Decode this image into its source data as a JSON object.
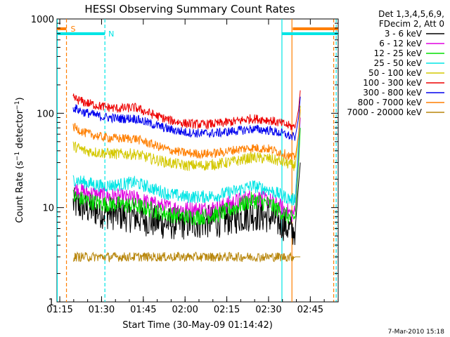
{
  "chart_data": {
    "type": "line",
    "title": "HESSI Observing Summary Count Rates",
    "xlabel": "Start Time (30-May-09 01:14:42)",
    "ylabel": "Count Rate (s⁻¹ detector⁻¹)",
    "ylabel_main": "Count Rate (s",
    "ylabel_sup1": "−1",
    "ylabel_mid": " detector",
    "ylabel_sup2": "−1",
    "ylabel_end": ")",
    "yscale": "log",
    "ylim": [
      1,
      1000
    ],
    "xlim": [
      1.233,
      2.917
    ],
    "x_unit": "hours",
    "x_ticks": [
      {
        "value": 1.25,
        "label": "01:15"
      },
      {
        "value": 1.5,
        "label": "01:30"
      },
      {
        "value": 1.75,
        "label": "01:45"
      },
      {
        "value": 2.0,
        "label": "02:00"
      },
      {
        "value": 2.25,
        "label": "02:15"
      },
      {
        "value": 2.5,
        "label": "02:30"
      },
      {
        "value": 2.75,
        "label": "02:45"
      }
    ],
    "y_ticks": [
      {
        "value": 1,
        "label": "1"
      },
      {
        "value": 10,
        "label": "10"
      },
      {
        "value": 100,
        "label": "100"
      },
      {
        "value": 1000,
        "label": "1000"
      }
    ],
    "legend_header": [
      "Det 1,3,4,5,6,9,",
      "FDecim 2, Att 0"
    ],
    "legend_position": "right",
    "footer": "7-Mar-2010 15:18",
    "markers": {
      "saa": {
        "label": "S",
        "color": "#ff7f00",
        "lines": [
          1.29,
          2.64,
          2.89
        ]
      },
      "night": {
        "label": "N",
        "color": "#00e5e5",
        "lines": [
          1.235,
          1.52,
          2.58,
          2.905
        ]
      }
    },
    "series": [
      {
        "name": "3 - 6 keV",
        "color": "#000000",
        "x": [
          1.33,
          1.4,
          1.5,
          1.6,
          1.7,
          1.8,
          1.9,
          2.0,
          2.1,
          2.2,
          2.3,
          2.4,
          2.5,
          2.6,
          2.64,
          2.66,
          2.68,
          2.69
        ],
        "y": [
          11,
          10,
          9,
          8.5,
          8,
          7.2,
          6.8,
          6.8,
          7.0,
          7.2,
          7.8,
          8.5,
          8,
          6.5,
          5.5,
          6,
          18,
          30
        ]
      },
      {
        "name": "6 - 12 keV",
        "color": "#e000e0",
        "x": [
          1.33,
          1.4,
          1.5,
          1.6,
          1.7,
          1.8,
          1.9,
          2.0,
          2.1,
          2.2,
          2.3,
          2.4,
          2.5,
          2.6,
          2.64,
          2.66,
          2.68,
          2.69
        ],
        "y": [
          16,
          14.5,
          13.5,
          13,
          12.5,
          11,
          10,
          9.6,
          9.6,
          10,
          11.5,
          13,
          12,
          9.5,
          8.5,
          9,
          40,
          90
        ]
      },
      {
        "name": "12 - 25 keV",
        "color": "#00e000",
        "x": [
          1.33,
          1.4,
          1.5,
          1.6,
          1.7,
          1.8,
          1.9,
          2.0,
          2.1,
          2.2,
          2.3,
          2.4,
          2.5,
          2.6,
          2.64,
          2.66,
          2.68,
          2.69
        ],
        "y": [
          13,
          12,
          11,
          10.8,
          10.5,
          9.5,
          8.5,
          8,
          8,
          8.5,
          10,
          12,
          11,
          8.5,
          7.5,
          8,
          30,
          70
        ]
      },
      {
        "name": "25 - 50 keV",
        "color": "#00e5e5",
        "x": [
          1.33,
          1.4,
          1.5,
          1.6,
          1.7,
          1.8,
          1.9,
          2.0,
          2.1,
          2.2,
          2.3,
          2.4,
          2.5,
          2.6,
          2.64,
          2.66,
          2.68,
          2.69
        ],
        "y": [
          20,
          18.5,
          17,
          17.5,
          18.5,
          16,
          14,
          13,
          13,
          13.5,
          15,
          17,
          15.5,
          13,
          12,
          12.5,
          50,
          110
        ]
      },
      {
        "name": "50 - 100 keV",
        "color": "#d4c800",
        "x": [
          1.33,
          1.4,
          1.5,
          1.6,
          1.7,
          1.8,
          1.9,
          2.0,
          2.1,
          2.2,
          2.3,
          2.4,
          2.5,
          2.6,
          2.64,
          2.66,
          2.68,
          2.69
        ],
        "y": [
          45,
          40,
          38,
          37,
          37,
          33,
          30,
          28,
          28,
          29,
          31,
          34,
          33,
          30,
          28,
          28,
          60,
          120
        ]
      },
      {
        "name": "100 - 300 keV",
        "color": "#ee0000",
        "x": [
          1.33,
          1.4,
          1.5,
          1.6,
          1.7,
          1.8,
          1.9,
          2.0,
          2.1,
          2.2,
          2.3,
          2.4,
          2.5,
          2.6,
          2.64,
          2.66,
          2.68,
          2.69
        ],
        "y": [
          145,
          130,
          118,
          112,
          115,
          98,
          85,
          78,
          76,
          78,
          82,
          88,
          85,
          76,
          72,
          72,
          110,
          175
        ]
      },
      {
        "name": "300 - 800 keV",
        "color": "#0000ee",
        "x": [
          1.33,
          1.4,
          1.5,
          1.6,
          1.7,
          1.8,
          1.9,
          2.0,
          2.1,
          2.2,
          2.3,
          2.4,
          2.5,
          2.6,
          2.64,
          2.66,
          2.68,
          2.69
        ],
        "y": [
          115,
          102,
          92,
          88,
          88,
          77,
          68,
          63,
          61,
          62,
          65,
          68,
          66,
          60,
          56,
          56,
          90,
          150
        ]
      },
      {
        "name": "800 - 7000 keV",
        "color": "#ff7f00",
        "x": [
          1.33,
          1.4,
          1.5,
          1.6,
          1.7,
          1.8,
          1.9,
          2.0,
          2.1,
          2.2,
          2.3,
          2.4,
          2.5,
          2.6,
          2.64,
          2.66,
          2.68,
          2.69
        ],
        "y": [
          72,
          62,
          56,
          54,
          54,
          47,
          41,
          38,
          37,
          38,
          41,
          43,
          42,
          37,
          34,
          34,
          60,
          110
        ]
      },
      {
        "name": "7000 - 20000 keV",
        "color": "#b8860b",
        "x": [
          1.33,
          1.4,
          1.5,
          1.6,
          1.7,
          1.8,
          1.9,
          2.0,
          2.1,
          2.2,
          2.3,
          2.4,
          2.5,
          2.6,
          2.64,
          2.66,
          2.68,
          2.69
        ],
        "y": [
          3,
          3,
          3,
          3,
          3,
          3,
          3,
          3,
          3,
          3,
          3,
          3,
          3,
          3,
          3,
          3,
          3,
          3
        ]
      }
    ]
  }
}
